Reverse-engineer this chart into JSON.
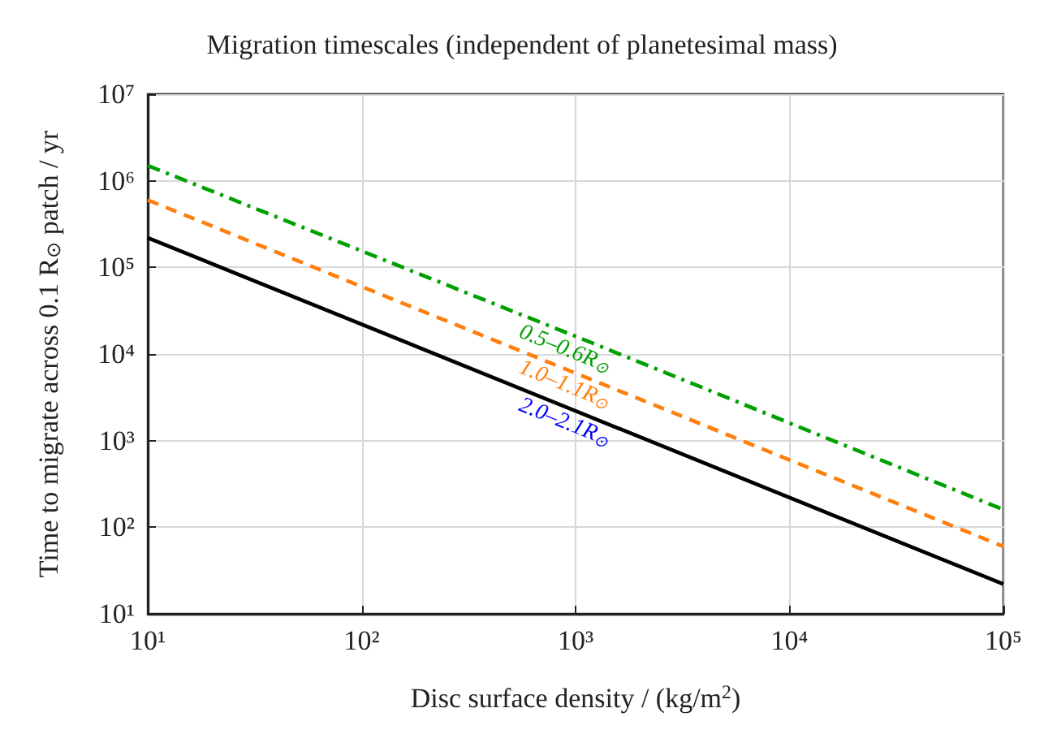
{
  "chart_data": {
    "type": "line",
    "title": "Migration timescales (independent of planetesimal mass)",
    "xlabel": "Disc surface density / (kg/m$^{2}$)",
    "ylabel": "Time to migrate across 0.1 R$_{⊙}$ patch / yr",
    "log": "xy",
    "grid": true,
    "marker": "none",
    "xlim": [
      10,
      100000
    ],
    "xticks": [
      {
        "value": 10,
        "label": "10¹"
      },
      {
        "value": 100,
        "label": "10²"
      },
      {
        "value": 1000,
        "label": "10³"
      },
      {
        "value": 10000,
        "label": "10⁴"
      },
      {
        "value": 100000,
        "label": "10⁵"
      }
    ],
    "ylim": [
      10,
      10000000
    ],
    "yticks": [
      {
        "value": 10,
        "label": "10¹"
      },
      {
        "value": 100,
        "label": "10²"
      },
      {
        "value": 1000,
        "label": "10³"
      },
      {
        "value": 10000,
        "label": "10⁴"
      },
      {
        "value": 100000,
        "label": "10⁵"
      },
      {
        "value": 1000000,
        "label": "10⁶"
      },
      {
        "value": 10000000,
        "label": "10⁷"
      }
    ],
    "x": [
      10,
      1000,
      100000
    ],
    "series": [
      {
        "color": "#00a000",
        "line_style": "dashdot",
        "values": [
          1500000,
          16000,
          160
        ]
      },
      {
        "color": "#ff7f0e",
        "line_style": "dashed",
        "values": [
          600000,
          6000,
          60
        ]
      },
      {
        "color": "#000000",
        "line_style": "solid",
        "values": [
          220000,
          2200,
          22
        ]
      }
    ],
    "annotations": [
      "0.5–0.6R$_{⊙}$",
      "1.0–1.1R$_{⊙}$",
      "2.0–2.1R$_{⊙}$"
    ]
  }
}
